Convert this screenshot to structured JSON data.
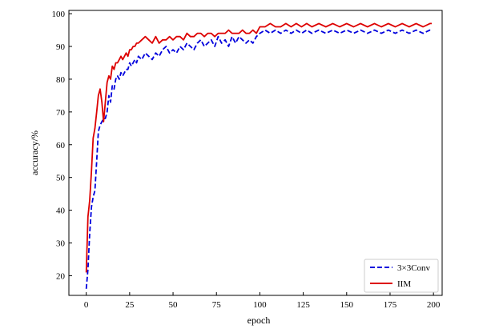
{
  "chart_data": {
    "type": "line",
    "title": "",
    "xlabel": "epoch",
    "ylabel": "accuracy/%",
    "xlim": [
      -10,
      205
    ],
    "ylim": [
      14,
      101
    ],
    "xticks": [
      0,
      25,
      50,
      75,
      100,
      125,
      150,
      175,
      200
    ],
    "yticks": [
      20,
      30,
      40,
      50,
      60,
      70,
      80,
      90,
      100
    ],
    "grid": false,
    "legend_position": "lower-right",
    "series": [
      {
        "name": "3×3Conv",
        "color": "#0000dd",
        "line_style": "dashed",
        "x": [
          0,
          1,
          2,
          3,
          4,
          5,
          6,
          7,
          8,
          9,
          10,
          11,
          12,
          13,
          14,
          15,
          16,
          17,
          18,
          19,
          20,
          21,
          22,
          23,
          24,
          25,
          26,
          27,
          28,
          29,
          30,
          32,
          34,
          36,
          38,
          40,
          42,
          44,
          46,
          48,
          50,
          52,
          54,
          56,
          58,
          60,
          62,
          64,
          66,
          68,
          70,
          72,
          74,
          76,
          78,
          80,
          82,
          84,
          86,
          88,
          90,
          92,
          94,
          96,
          98,
          100,
          103,
          106,
          109,
          112,
          115,
          118,
          121,
          124,
          127,
          130,
          134,
          138,
          142,
          146,
          150,
          154,
          158,
          162,
          166,
          170,
          174,
          178,
          182,
          186,
          190,
          194,
          198,
          199
        ],
        "y": [
          16,
          22,
          33,
          41,
          44,
          46,
          55,
          64,
          66,
          67,
          68,
          68,
          70,
          75,
          73,
          78,
          77,
          80,
          81,
          80,
          82,
          81,
          82,
          83,
          83,
          85,
          84,
          85,
          86,
          85,
          87,
          86,
          88,
          87,
          86,
          88,
          87,
          89,
          90,
          88,
          89,
          88,
          90,
          89,
          91,
          90,
          89,
          91,
          92,
          90,
          91,
          92,
          90,
          93,
          91,
          92,
          90,
          93,
          91,
          93,
          92,
          91,
          92,
          91,
          93,
          94,
          95,
          94,
          95,
          94,
          95,
          94,
          95,
          94,
          95,
          94,
          95,
          94,
          95,
          94,
          95,
          94,
          95,
          94,
          95,
          94,
          95,
          94,
          95,
          94,
          95,
          94,
          95,
          95
        ]
      },
      {
        "name": "IIM",
        "color": "#dd0000",
        "line_style": "solid",
        "x": [
          0,
          1,
          2,
          3,
          4,
          5,
          6,
          7,
          8,
          9,
          10,
          11,
          12,
          13,
          14,
          15,
          16,
          17,
          18,
          19,
          20,
          21,
          22,
          23,
          24,
          25,
          26,
          27,
          28,
          29,
          30,
          32,
          34,
          36,
          38,
          40,
          42,
          44,
          46,
          48,
          50,
          52,
          54,
          56,
          58,
          60,
          62,
          64,
          66,
          68,
          70,
          72,
          74,
          76,
          78,
          80,
          82,
          84,
          86,
          88,
          90,
          92,
          94,
          96,
          98,
          100,
          103,
          106,
          109,
          112,
          115,
          118,
          121,
          124,
          127,
          130,
          134,
          138,
          142,
          146,
          150,
          154,
          158,
          162,
          166,
          170,
          174,
          178,
          182,
          186,
          190,
          194,
          198,
          199
        ],
        "y": [
          21,
          38,
          43,
          52,
          62,
          65,
          70,
          75,
          77,
          73,
          67,
          73,
          79,
          81,
          80,
          84,
          83,
          85,
          85,
          86,
          87,
          86,
          87,
          88,
          87,
          89,
          89,
          90,
          90,
          91,
          91,
          92,
          93,
          92,
          91,
          93,
          91,
          92,
          92,
          93,
          92,
          93,
          93,
          92,
          94,
          93,
          93,
          94,
          94,
          93,
          94,
          94,
          93,
          94,
          94,
          94,
          95,
          94,
          94,
          94,
          95,
          94,
          94,
          95,
          94,
          96,
          96,
          97,
          96,
          96,
          97,
          96,
          97,
          96,
          97,
          96,
          97,
          96,
          97,
          96,
          97,
          96,
          97,
          96,
          97,
          96,
          97,
          96,
          97,
          96,
          97,
          96,
          97,
          97
        ]
      }
    ]
  }
}
